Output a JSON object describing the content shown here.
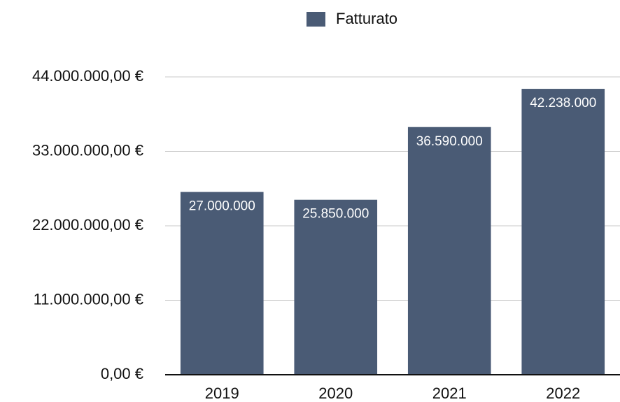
{
  "chart_data": {
    "type": "bar",
    "categories": [
      "2019",
      "2020",
      "2021",
      "2022"
    ],
    "series": [
      {
        "name": "Fatturato",
        "color": "#4a5b75",
        "values": [
          27000000,
          25850000,
          36590000,
          42238000
        ],
        "value_labels": [
          "27.000.000",
          "25.850.000",
          "36.590.000",
          "42.238.000"
        ]
      }
    ],
    "ylim": [
      0,
      44000000
    ],
    "yticks": [
      {
        "value": 0,
        "label": "0,00 €"
      },
      {
        "value": 11000000,
        "label": "11.000.000,00 €"
      },
      {
        "value": 22000000,
        "label": "22.000.000,00 €"
      },
      {
        "value": 33000000,
        "label": "33.000.000,00 €"
      },
      {
        "value": 44000000,
        "label": "44.000.000,00 €"
      }
    ],
    "grid": true,
    "legend": "top"
  }
}
